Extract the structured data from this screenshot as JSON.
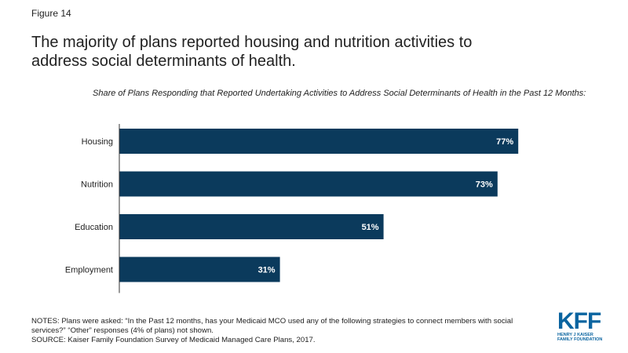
{
  "figure_label": "Figure 14",
  "headline": "The majority of plans reported housing and nutrition activities to address social determinants of health.",
  "notes": "NOTES: Plans were asked: “In the Past 12 months, has your Medicaid MCO used any of the following strategies to connect members with social services?” “Other” responses (4% of plans) not shown.",
  "source": "SOURCE: Kaiser Family Foundation Survey of Medicaid Managed Care Plans, 2017.",
  "logo": {
    "mark": "KFF",
    "text": "HENRY J KAISER FAMILY FOUNDATION"
  },
  "colors": {
    "bar": "#0b3a5c",
    "label": "#ffffff",
    "axis": "#333333"
  },
  "chart_data": {
    "type": "bar",
    "orientation": "horizontal",
    "title": "Share of Plans Responding that Reported Undertaking Activities to Address Social Determinants of Health in the Past 12 Months:",
    "categories": [
      "Housing",
      "Nutrition",
      "Education",
      "Employment"
    ],
    "values": [
      77,
      73,
      51,
      31
    ],
    "value_labels": [
      "77%",
      "73%",
      "51%",
      "31%"
    ],
    "xlim": [
      0,
      100
    ],
    "grid": false,
    "legend": "none"
  }
}
